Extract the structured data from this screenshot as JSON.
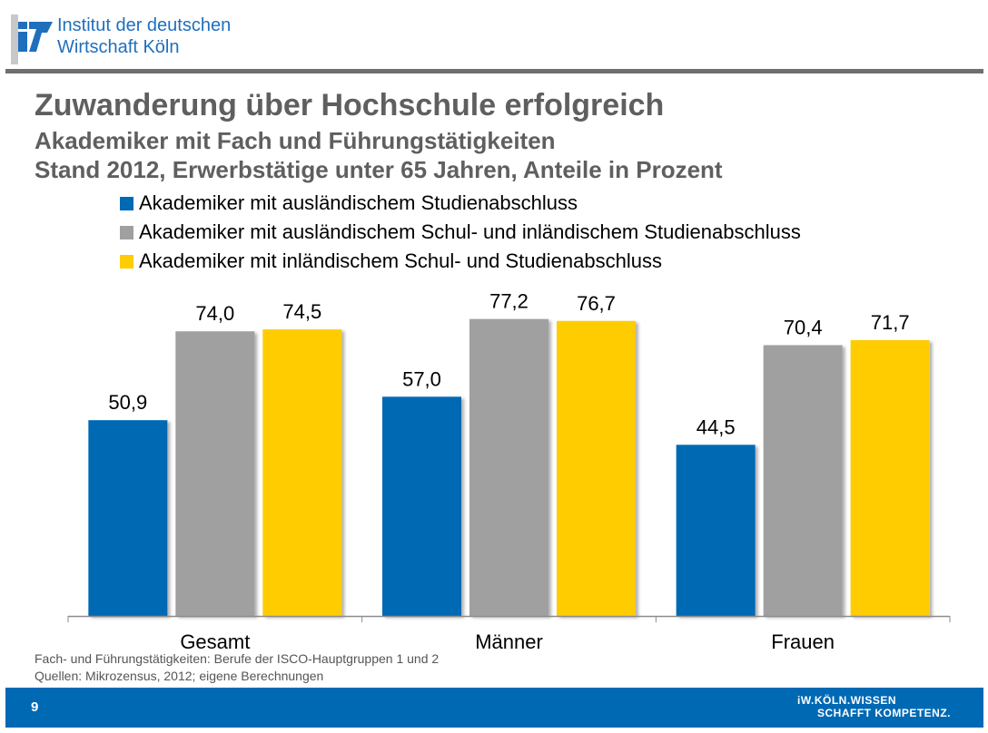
{
  "header": {
    "logo_line1": "Institut der deutschen",
    "logo_line2": "Wirtschaft Köln",
    "logo_mark": "iw"
  },
  "title": "Zuwanderung über Hochschule erfolgreich",
  "subtitle1": "Akademiker mit Fach und Führungstätigkeiten",
  "subtitle2": "Stand 2012, Erwerbstätige unter 65 Jahren, Anteile in Prozent",
  "colors": {
    "series1": "#0069b4",
    "series2": "#a0a0a0",
    "series3": "#ffcc00",
    "footer": "#0069b4",
    "title": "#5f5f5f"
  },
  "chart_data": {
    "type": "bar",
    "title": "Zuwanderung über Hochschule erfolgreich",
    "xlabel": "",
    "ylabel": "",
    "ylim": [
      0,
      80
    ],
    "grid": false,
    "legend": "top",
    "categories": [
      "Gesamt",
      "Männer",
      "Frauen"
    ],
    "series": [
      {
        "name": "Akademiker mit ausländischem Studienabschluss",
        "color": "#0069b4",
        "values": [
          50.9,
          57.0,
          44.5
        ],
        "labels": [
          "50,9",
          "57,0",
          "44,5"
        ]
      },
      {
        "name": "Akademiker mit ausländischem Schul- und inländischem Studienabschluss",
        "color": "#a0a0a0",
        "values": [
          74.0,
          77.2,
          70.4
        ],
        "labels": [
          "74,0",
          "77,2",
          "70,4"
        ]
      },
      {
        "name": "Akademiker mit inländischem Schul- und Studienabschluss",
        "color": "#ffcc00",
        "values": [
          74.5,
          76.7,
          71.7
        ],
        "labels": [
          "74,5",
          "76,7",
          "71,7"
        ]
      }
    ]
  },
  "footnotes": [
    "Fach- und Führungstätigkeiten: Berufe der ISCO-Hauptgruppen 1 und 2",
    "Quellen: Mikrozensus, 2012; eigene Berechnungen"
  ],
  "footer": {
    "page_number": "9",
    "claim_line1": "iW.KÖLN.WISSEN",
    "claim_line2": "SCHAFFT KOMPETENZ."
  }
}
